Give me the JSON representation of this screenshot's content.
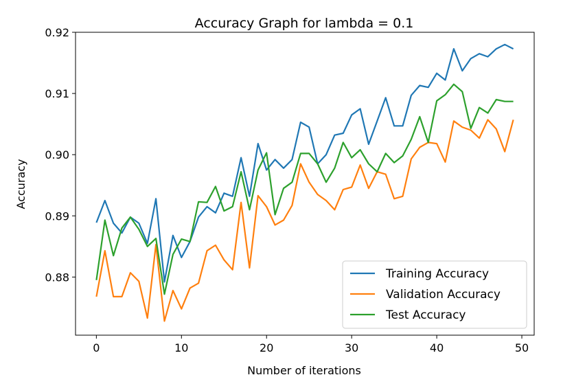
{
  "chart_data": {
    "type": "line",
    "title": "Accuracy Graph for lambda = 0.1",
    "xlabel": "Number of iterations",
    "ylabel": "Accuracy",
    "xlim": [
      -2.45,
      51.45
    ],
    "ylim": [
      0.8705,
      0.92
    ],
    "xticks": [
      0,
      10,
      20,
      30,
      40,
      50
    ],
    "yticks": [
      0.88,
      0.89,
      0.9,
      0.91,
      0.92
    ],
    "xtick_labels": [
      "0",
      "10",
      "20",
      "30",
      "40",
      "50"
    ],
    "ytick_labels": [
      "0.88",
      "0.89",
      "0.90",
      "0.91",
      "0.92"
    ],
    "grid": false,
    "legend_position": "lower-right",
    "x": [
      0,
      1,
      2,
      3,
      4,
      5,
      6,
      7,
      8,
      9,
      10,
      11,
      12,
      13,
      14,
      15,
      16,
      17,
      18,
      19,
      20,
      21,
      22,
      23,
      24,
      25,
      26,
      27,
      28,
      29,
      30,
      31,
      32,
      33,
      34,
      35,
      36,
      37,
      38,
      39,
      40,
      41,
      42,
      43,
      44,
      45,
      46,
      47,
      48,
      49
    ],
    "series": [
      {
        "name": "Training Accuracy",
        "color": "#1f77b4",
        "values": [
          0.8889,
          0.8925,
          0.8888,
          0.8872,
          0.8898,
          0.8888,
          0.8855,
          0.8928,
          0.8792,
          0.8868,
          0.8832,
          0.8858,
          0.8898,
          0.8915,
          0.8905,
          0.8937,
          0.8932,
          0.8995,
          0.8932,
          0.9018,
          0.8975,
          0.8992,
          0.8978,
          0.8992,
          0.9053,
          0.9045,
          0.8985,
          0.9,
          0.9032,
          0.9035,
          0.9065,
          0.9075,
          0.9017,
          0.9055,
          0.9093,
          0.9047,
          0.9047,
          0.9097,
          0.9113,
          0.911,
          0.9133,
          0.9122,
          0.9173,
          0.9137,
          0.9157,
          0.9165,
          0.916,
          0.9173,
          0.918,
          0.9173
        ]
      },
      {
        "name": "Validation Accuracy",
        "color": "#ff7f0e",
        "values": [
          0.8768,
          0.8843,
          0.8768,
          0.8768,
          0.8807,
          0.8793,
          0.8733,
          0.8853,
          0.8728,
          0.8778,
          0.8748,
          0.8782,
          0.879,
          0.8843,
          0.8852,
          0.8828,
          0.8812,
          0.8922,
          0.8815,
          0.8933,
          0.8915,
          0.8885,
          0.8893,
          0.8917,
          0.8985,
          0.8955,
          0.8935,
          0.8925,
          0.891,
          0.8943,
          0.8947,
          0.8983,
          0.8945,
          0.8972,
          0.8968,
          0.8928,
          0.8932,
          0.8993,
          0.9012,
          0.902,
          0.9018,
          0.8988,
          0.9055,
          0.9045,
          0.904,
          0.9027,
          0.9057,
          0.9042,
          0.9005,
          0.9057
        ]
      },
      {
        "name": "Test Accuracy",
        "color": "#2ca02c",
        "values": [
          0.8795,
          0.8893,
          0.8835,
          0.888,
          0.8898,
          0.8878,
          0.885,
          0.8863,
          0.8772,
          0.8837,
          0.8862,
          0.8858,
          0.8923,
          0.8922,
          0.8948,
          0.8908,
          0.8915,
          0.8972,
          0.891,
          0.8975,
          0.9003,
          0.8902,
          0.8945,
          0.8955,
          0.9002,
          0.9002,
          0.8985,
          0.8955,
          0.8978,
          0.902,
          0.8995,
          0.9008,
          0.8985,
          0.8972,
          0.9002,
          0.8987,
          0.8998,
          0.9025,
          0.9062,
          0.902,
          0.9088,
          0.9098,
          0.9115,
          0.9103,
          0.9043,
          0.9077,
          0.9068,
          0.909,
          0.9087,
          0.9087
        ]
      }
    ]
  }
}
